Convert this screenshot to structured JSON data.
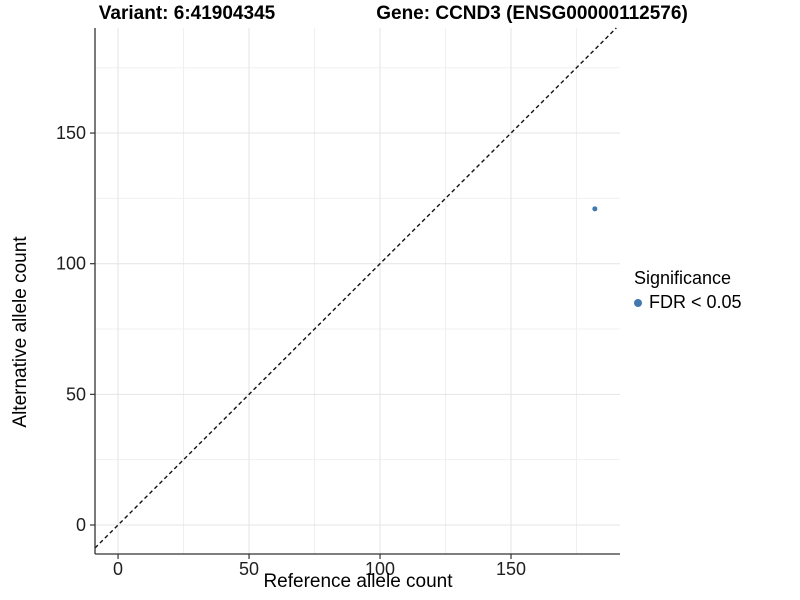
{
  "chart_data": {
    "type": "scatter",
    "title_left": "Variant: 6:41904345",
    "title_right": "Gene: CCND3 (ENSG00000112576)",
    "xlabel": "Reference allele count",
    "ylabel": "Alternative allele count",
    "x_ticks": [
      0,
      50,
      100,
      150
    ],
    "y_ticks": [
      0,
      50,
      100,
      150
    ],
    "xlim": [
      -8.8,
      191.6
    ],
    "ylim": [
      -11.1,
      190.2
    ],
    "grid": {
      "show": true,
      "minor_step": 25,
      "major_color": "#e4e4e4",
      "minor_color": "#f0f0f0"
    },
    "diagonal": {
      "kind": "y=x",
      "style": "dashed",
      "color": "#111111"
    },
    "series": [
      {
        "name": "FDR < 0.05",
        "color": "#4278b0",
        "points": [
          {
            "x": 182,
            "y": 121
          }
        ]
      }
    ],
    "legend": {
      "title": "Significance",
      "position": "right",
      "entries": [
        {
          "label": "FDR < 0.05",
          "color": "#4278b0"
        }
      ]
    },
    "axis_color": "#333333",
    "tick_label_color": "#1f1f1f"
  }
}
